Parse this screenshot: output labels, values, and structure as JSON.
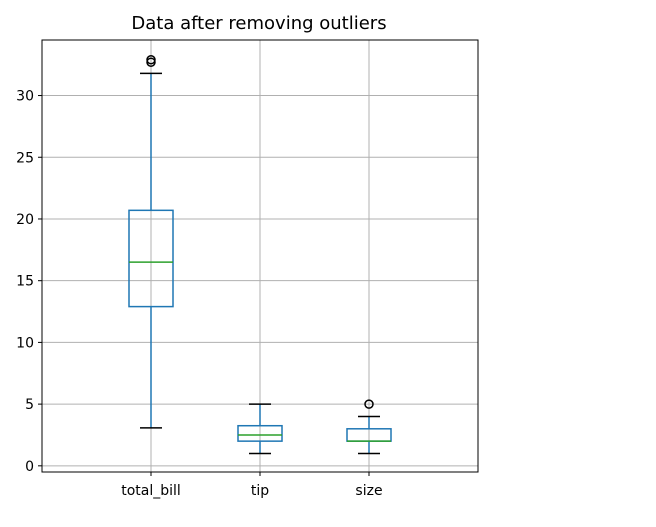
{
  "chart_data": {
    "type": "boxplot",
    "title": "Data after removing outliers",
    "xlabel": "",
    "ylabel": "",
    "categories": [
      "total_bill",
      "tip",
      "size"
    ],
    "ylim": [
      -0.5,
      34.5
    ],
    "yticks": [
      0,
      5,
      10,
      15,
      20,
      25,
      30
    ],
    "grid": true,
    "boxes": [
      {
        "category": "total_bill",
        "whisker_low": 3.07,
        "q1": 12.9,
        "median": 16.5,
        "q3": 20.7,
        "whisker_high": 31.8,
        "fliers": [
          32.7,
          32.9
        ]
      },
      {
        "category": "tip",
        "whisker_low": 1.0,
        "q1": 2.0,
        "median": 2.5,
        "q3": 3.25,
        "whisker_high": 5.0,
        "fliers": []
      },
      {
        "category": "size",
        "whisker_low": 1.0,
        "q1": 2.0,
        "median": 2.0,
        "q3": 3.0,
        "whisker_high": 4.0,
        "fliers": [
          5.0
        ]
      }
    ],
    "colors": {
      "box": "#1f77b4",
      "median": "#2ca02c",
      "whisker_cap": "#000000",
      "grid": "#b0b0b0"
    }
  }
}
